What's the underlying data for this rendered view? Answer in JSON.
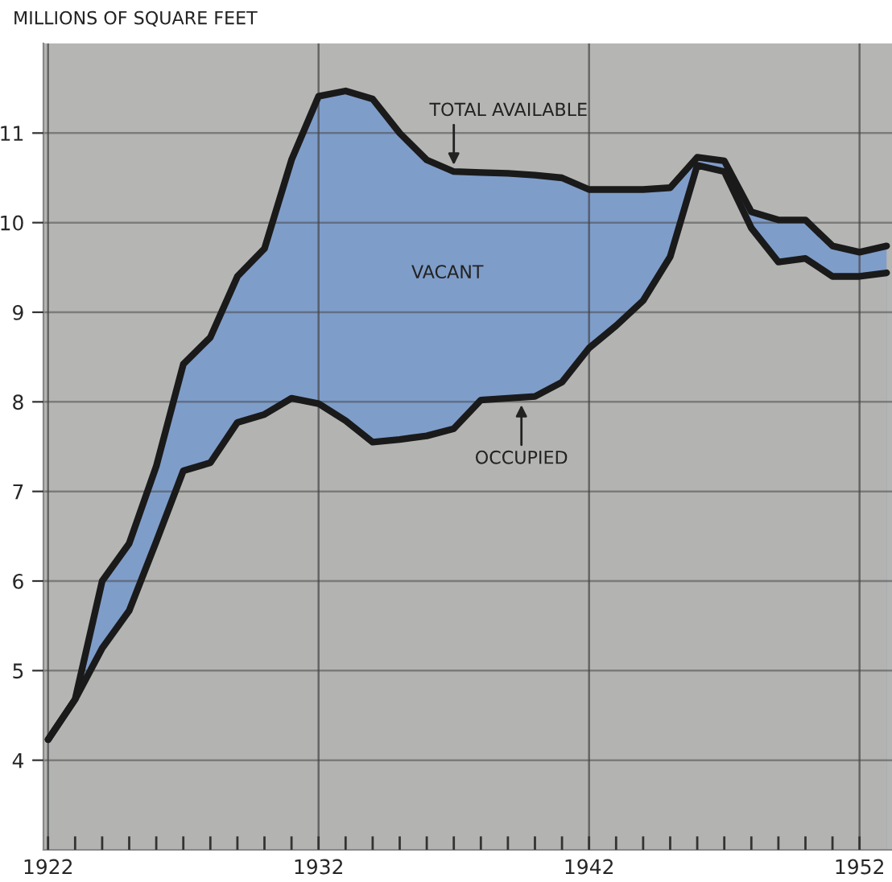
{
  "chart_data": {
    "type": "area",
    "ylabel": "MILLIONS OF SQUARE FEET",
    "x": [
      1922,
      1923,
      1924,
      1925,
      1926,
      1927,
      1928,
      1929,
      1930,
      1931,
      1932,
      1933,
      1934,
      1935,
      1936,
      1937,
      1938,
      1939,
      1940,
      1941,
      1942,
      1943,
      1944,
      1945,
      1946,
      1947,
      1948,
      1949,
      1950,
      1951,
      1952,
      1953
    ],
    "series": [
      {
        "color": "#7f9dc9",
        "values": [
          4.23,
          4.68,
          6.0,
          6.42,
          7.28,
          8.42,
          8.72,
          9.4,
          9.71,
          10.7,
          11.41,
          11.47,
          11.38,
          11.0,
          10.7,
          10.57,
          10.56,
          10.55,
          10.53,
          10.5,
          10.37,
          10.37,
          10.37,
          10.39,
          10.73,
          10.69,
          10.12,
          10.03,
          10.03,
          9.74,
          9.67,
          9.74
        ]
      },
      {
        "color": "#b3b3b1",
        "values": [
          4.23,
          4.68,
          5.25,
          5.67,
          6.44,
          7.23,
          7.32,
          7.77,
          7.86,
          8.04,
          7.98,
          7.79,
          7.55,
          7.58,
          7.62,
          7.7,
          8.02,
          8.04,
          8.06,
          8.22,
          8.6,
          8.85,
          9.13,
          9.62,
          10.64,
          10.57,
          9.94,
          9.56,
          9.6,
          9.4,
          9.4,
          9.44
        ]
      }
    ],
    "annotations": [
      {
        "text": "TOTAL AVAILABLE",
        "x": 1937,
        "y": 10.57
      },
      {
        "text": "OCCUPIED",
        "x": 1939.5,
        "y": 8.04
      },
      "VACANT"
    ],
    "xlim": [
      1921.83,
      1953.2
    ],
    "xticks": [
      1922,
      {
        "value": 1923,
        "label": null
      },
      {
        "value": 1924,
        "label": null
      },
      {
        "value": 1925,
        "label": null
      },
      {
        "value": 1926,
        "label": null
      },
      {
        "value": 1927,
        "label": null
      },
      {
        "value": 1928,
        "label": null
      },
      {
        "value": 1929,
        "label": null
      },
      {
        "value": 1930,
        "label": null
      },
      {
        "value": 1931,
        "label": null
      },
      1932,
      {
        "value": 1933,
        "label": null
      },
      {
        "value": 1934,
        "label": null
      },
      {
        "value": 1935,
        "label": null
      },
      {
        "value": 1936,
        "label": null
      },
      {
        "value": 1937,
        "label": null
      },
      {
        "value": 1938,
        "label": null
      },
      {
        "value": 1939,
        "label": null
      },
      {
        "value": 1940,
        "label": null
      },
      {
        "value": 1941,
        "label": null
      },
      1942,
      {
        "value": 1943,
        "label": null
      },
      {
        "value": 1944,
        "label": null
      },
      {
        "value": 1945,
        "label": null
      },
      {
        "value": 1946,
        "label": null
      },
      {
        "value": 1947,
        "label": null
      },
      {
        "value": 1948,
        "label": null
      },
      {
        "value": 1949,
        "label": null
      },
      {
        "value": 1950,
        "label": null
      },
      {
        "value": 1951,
        "label": null
      },
      1952
    ],
    "ylim": [
      3,
      12
    ],
    "yticks": [
      4,
      5,
      6,
      7,
      8,
      9,
      10,
      11
    ],
    "grid": true,
    "legend": false
  }
}
